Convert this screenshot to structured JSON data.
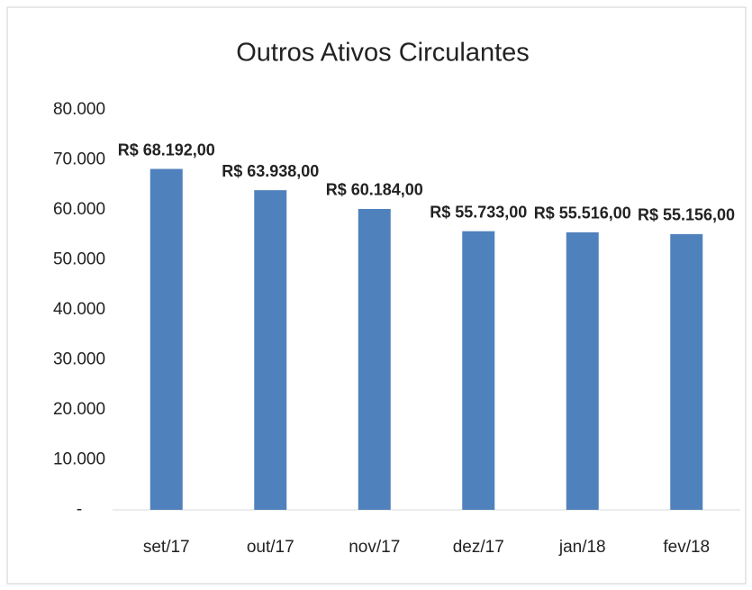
{
  "chart_data": {
    "type": "bar",
    "title": "Outros Ativos Circulantes",
    "categories": [
      "set/17",
      "out/17",
      "nov/17",
      "dez/17",
      "jan/18",
      "fev/18"
    ],
    "values": [
      68192,
      63938,
      60184,
      55733,
      55516,
      55156
    ],
    "value_labels": [
      "R$ 68.192,00",
      "R$ 63.938,00",
      "R$ 60.184,00",
      "R$ 55.733,00",
      "R$ 55.516,00",
      "R$ 55.156,00"
    ],
    "color": "#4f81bd",
    "ylim": [
      0,
      80000
    ],
    "yticks": [
      {
        "value": 0,
        "label": "-"
      },
      {
        "value": 10000,
        "label": "10.000"
      },
      {
        "value": 20000,
        "label": "20.000"
      },
      {
        "value": 30000,
        "label": "30.000"
      },
      {
        "value": 40000,
        "label": "40.000"
      },
      {
        "value": 50000,
        "label": "50.000"
      },
      {
        "value": 60000,
        "label": "60.000"
      },
      {
        "value": 70000,
        "label": "70.000"
      },
      {
        "value": 80000,
        "label": "80.000"
      }
    ],
    "grid": false
  }
}
